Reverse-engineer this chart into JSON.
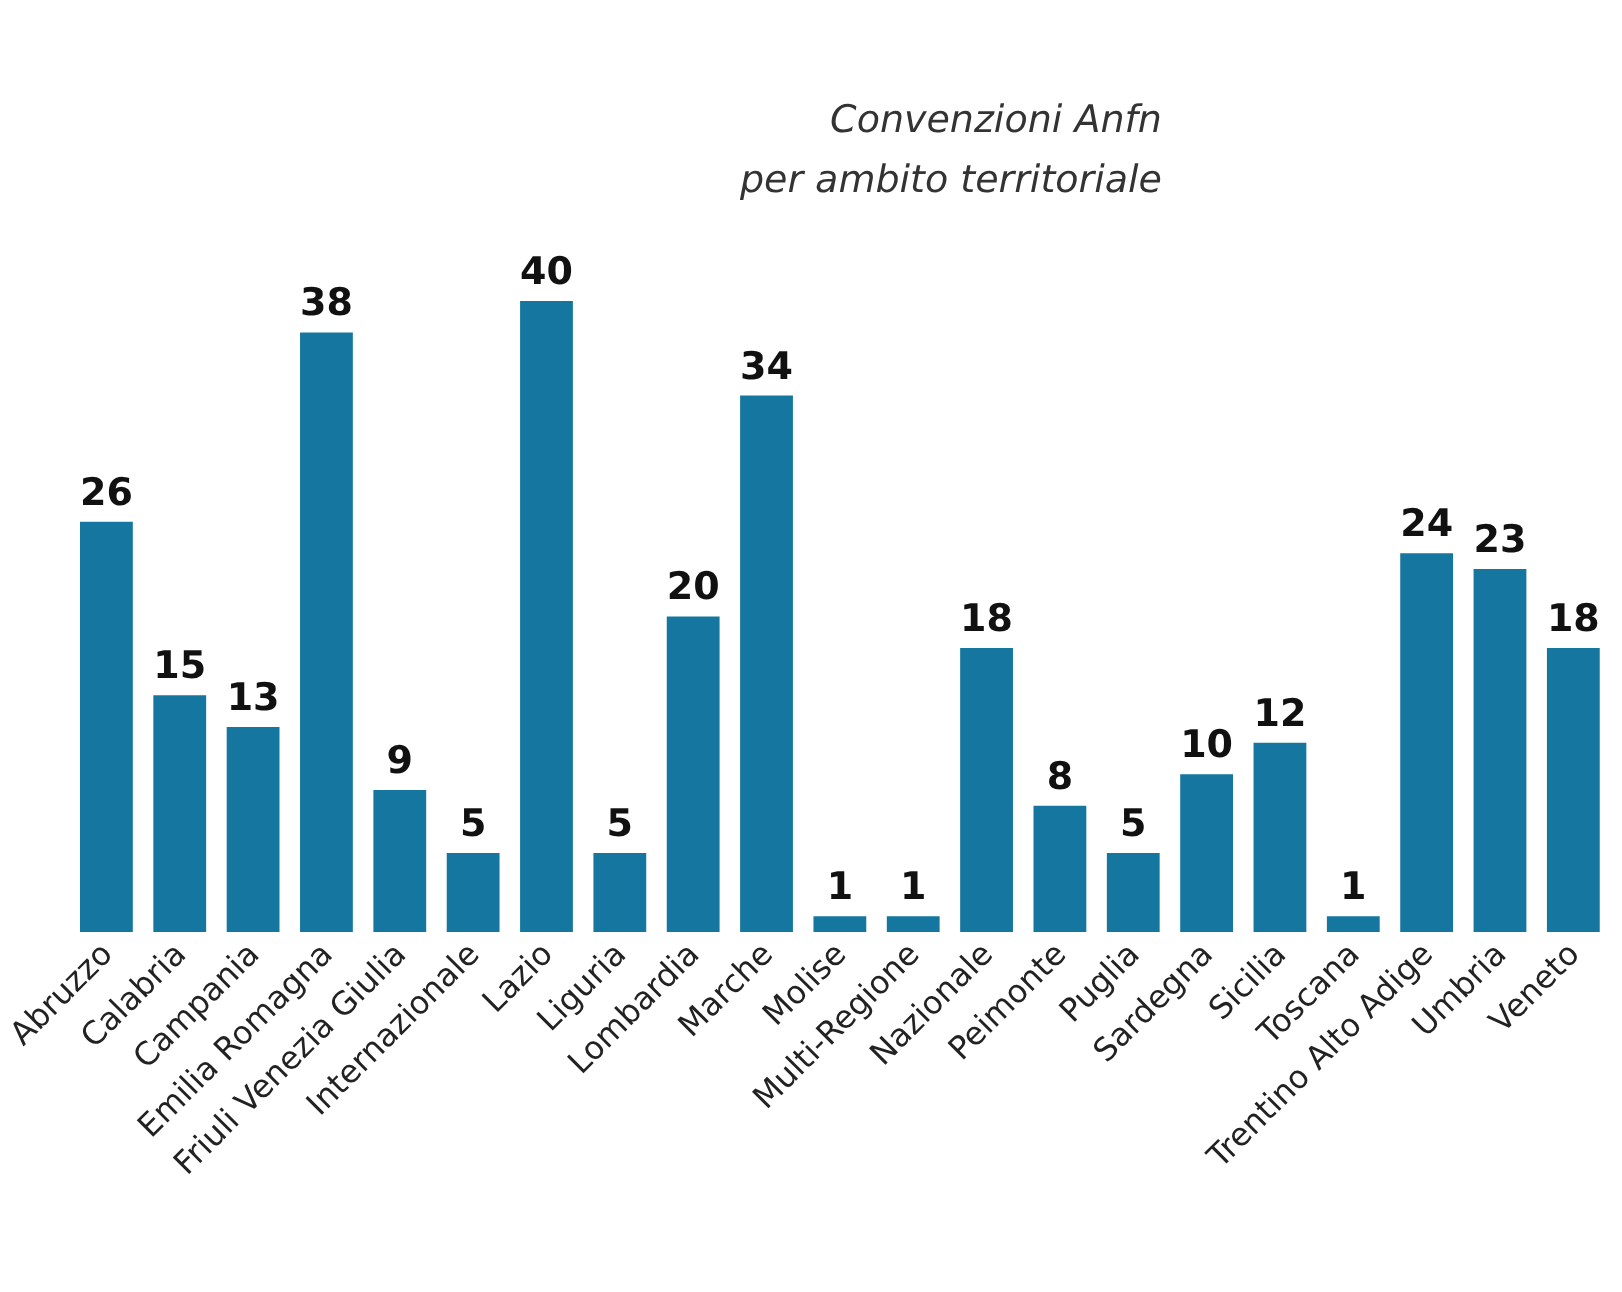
{
  "chart_data": {
    "type": "bar",
    "title": "Convenzioni Anfn\nper ambito territoriale",
    "categories": [
      "Abruzzo",
      "Calabria",
      "Campania",
      "Emilia Romagna",
      "Friuli Venezia Giulia",
      "Internazionale",
      "Lazio",
      "Liguria",
      "Lombardia",
      "Marche",
      "Molise",
      "Multi-Regione",
      "Nazionale",
      "Peimonte",
      "Puglia",
      "Sardegna",
      "Sicilia",
      "Toscana",
      "Trentino Alto Adige",
      "Umbria",
      "Veneto"
    ],
    "values": [
      26,
      15,
      13,
      38,
      9,
      5,
      40,
      5,
      20,
      34,
      1,
      1,
      18,
      8,
      5,
      10,
      12,
      1,
      24,
      23,
      18
    ],
    "color": "#1577a0",
    "data_labels": true
  }
}
